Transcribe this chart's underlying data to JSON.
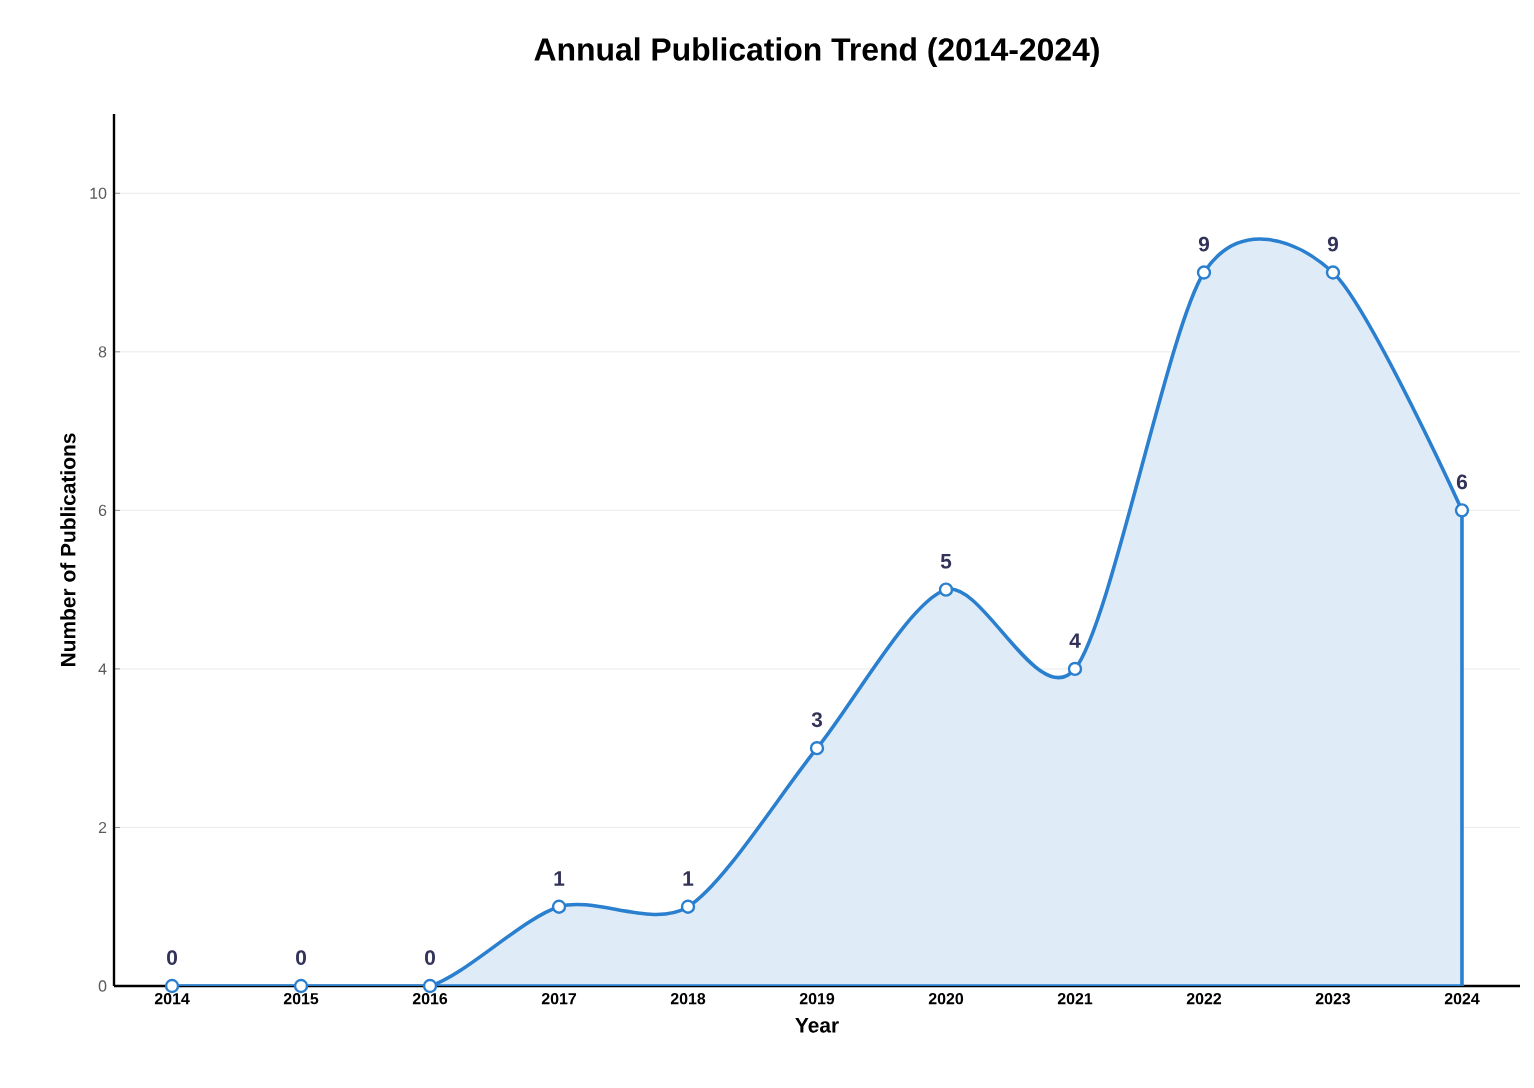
{
  "chart_data": {
    "type": "area",
    "title": "Annual Publication Trend (2014-2024)",
    "xlabel": "Year",
    "ylabel": "Number of Publications",
    "categories": [
      "2014",
      "2015",
      "2016",
      "2017",
      "2018",
      "2019",
      "2020",
      "2021",
      "2022",
      "2023",
      "2024"
    ],
    "values": [
      0,
      0,
      0,
      1,
      1,
      3,
      5,
      4,
      9,
      9,
      6
    ],
    "color": "#2a7fcf",
    "ylim": [
      0,
      11
    ],
    "yticks": [
      0,
      2,
      4,
      6,
      8,
      10
    ],
    "grid": "y",
    "marker": "circle",
    "data_labels": true
  }
}
